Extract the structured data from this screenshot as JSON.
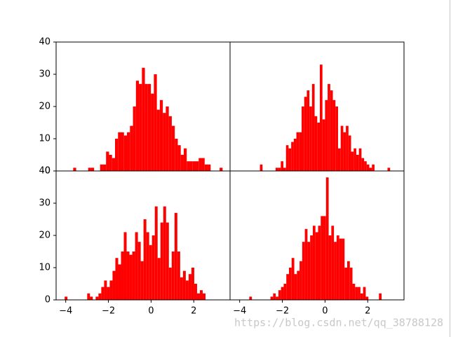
{
  "chart_data": [
    {
      "type": "histogram",
      "color": "#ff0000",
      "bins": [
        -3.65,
        -3.51,
        -3.37,
        -3.23,
        -3.09,
        -2.95,
        -2.81,
        -2.67,
        -2.53,
        -2.39,
        -2.25,
        -2.11,
        -1.97,
        -1.83,
        -1.69,
        -1.55,
        -1.41,
        -1.27,
        -1.13,
        -0.99,
        -0.85,
        -0.71,
        -0.57,
        -0.43,
        -0.29,
        -0.15,
        -0.01,
        0.13,
        0.27,
        0.41,
        0.55,
        0.69,
        0.83,
        0.97,
        1.11,
        1.25,
        1.39,
        1.53,
        1.67,
        1.81,
        1.95,
        2.09,
        2.23,
        2.37,
        2.51,
        2.65,
        2.79,
        2.93,
        3.07,
        3.21,
        3.35
      ],
      "values": [
        1,
        0,
        0,
        0,
        0,
        1,
        1,
        0,
        0,
        2,
        2,
        6,
        5,
        4,
        10,
        12,
        12,
        11,
        12,
        14,
        20,
        28,
        27,
        32,
        27,
        27,
        24,
        30,
        19,
        22,
        18,
        20,
        17,
        14,
        10,
        8,
        5,
        7,
        3,
        3,
        3,
        3,
        4,
        4,
        2,
        2,
        0,
        0,
        0,
        1
      ],
      "xlim": [
        -4.45,
        3.7
      ],
      "ylim": [
        0,
        40
      ],
      "yticks": [
        0,
        10,
        20,
        30,
        40
      ]
    },
    {
      "type": "histogram",
      "color": "#ff0000",
      "bins": [
        -3.05,
        -2.928,
        -2.806,
        -2.684,
        -2.562,
        -2.44,
        -2.318,
        -2.196,
        -2.074,
        -1.952,
        -1.83,
        -1.708,
        -1.586,
        -1.464,
        -1.342,
        -1.22,
        -1.098,
        -0.976,
        -0.854,
        -0.732,
        -0.61,
        -0.488,
        -0.366,
        -0.244,
        -0.122,
        0,
        0.122,
        0.244,
        0.366,
        0.488,
        0.61,
        0.732,
        0.854,
        0.976,
        1.098,
        1.22,
        1.342,
        1.464,
        1.586,
        1.708,
        1.83,
        1.952,
        2.074,
        2.196,
        2.318,
        2.44,
        2.562,
        2.684,
        2.806,
        2.928,
        3.05
      ],
      "values": [
        2,
        0,
        0,
        0,
        0,
        0,
        1,
        1,
        3,
        1,
        8,
        7,
        9,
        10,
        12,
        12,
        20,
        23,
        25,
        20,
        27,
        17,
        15,
        33,
        16,
        22,
        27,
        25,
        22,
        20,
        7,
        14,
        12,
        14,
        11,
        6,
        7,
        5,
        7,
        4,
        3,
        2,
        1,
        2,
        0,
        0,
        0,
        0,
        0,
        1
      ],
      "xlim": [
        -4.45,
        3.7
      ],
      "ylim": [
        0,
        40
      ]
    },
    {
      "type": "histogram",
      "color": "#ff0000",
      "bins": [
        -4.05,
        -3.918,
        -3.786,
        -3.654,
        -3.522,
        -3.39,
        -3.258,
        -3.126,
        -2.994,
        -2.862,
        -2.73,
        -2.598,
        -2.466,
        -2.334,
        -2.202,
        -2.07,
        -1.938,
        -1.806,
        -1.674,
        -1.542,
        -1.41,
        -1.278,
        -1.146,
        -1.014,
        -0.882,
        -0.75,
        -0.618,
        -0.486,
        -0.354,
        -0.222,
        -0.09,
        0.042,
        0.174,
        0.306,
        0.438,
        0.57,
        0.702,
        0.834,
        0.966,
        1.098,
        1.23,
        1.362,
        1.494,
        1.626,
        1.758,
        1.89,
        2.022,
        2.154,
        2.286,
        2.418,
        2.55
      ],
      "values": [
        1,
        0,
        0,
        0,
        0,
        0,
        0,
        0,
        2,
        1,
        0,
        1,
        2,
        4,
        6,
        4,
        6,
        9,
        13,
        11,
        15,
        21,
        15,
        14,
        15,
        21,
        18,
        12,
        25,
        21,
        17,
        20,
        29,
        13,
        24,
        29,
        24,
        10,
        15,
        27,
        15,
        7,
        9,
        6,
        8,
        10,
        5,
        2,
        3,
        2
      ],
      "xlim": [
        -4.45,
        3.7
      ],
      "ylim": [
        0,
        40
      ],
      "yticks": [
        0,
        10,
        20,
        30,
        40
      ],
      "xticks": [
        {
          "value": -4,
          "label": "−4"
        },
        {
          "value": -2,
          "label": "−2"
        },
        0,
        2
      ]
    },
    {
      "type": "histogram",
      "color": "#ff0000",
      "bins": [
        -3.55,
        -3.426,
        -3.302,
        -3.178,
        -3.054,
        -2.93,
        -2.806,
        -2.682,
        -2.558,
        -2.434,
        -2.31,
        -2.186,
        -2.062,
        -1.938,
        -1.814,
        -1.69,
        -1.566,
        -1.442,
        -1.318,
        -1.194,
        -1.07,
        -0.946,
        -0.822,
        -0.698,
        -0.574,
        -0.45,
        -0.326,
        -0.202,
        -0.078,
        0.046,
        0.17,
        0.294,
        0.418,
        0.542,
        0.666,
        0.79,
        0.914,
        1.038,
        1.162,
        1.286,
        1.41,
        1.534,
        1.658,
        1.782,
        1.906,
        2.03,
        2.154,
        2.278,
        2.402,
        2.526,
        2.65
      ],
      "values": [
        1,
        0,
        0,
        0,
        0,
        0,
        0,
        0,
        1,
        2,
        1,
        3,
        4,
        5,
        8,
        10,
        13,
        8,
        9,
        12,
        18,
        22,
        18,
        20,
        23,
        21,
        23,
        26,
        26,
        38,
        20,
        23,
        18,
        20,
        19,
        19,
        10,
        12,
        10,
        5,
        4,
        4,
        2,
        4,
        1,
        0,
        0,
        0,
        0,
        2
      ],
      "xlim": [
        -4.45,
        3.7
      ],
      "ylim": [
        0,
        40
      ],
      "xticks": [
        {
          "value": -4,
          "label": "−4"
        },
        {
          "value": -2,
          "label": "−2"
        },
        0,
        2
      ]
    }
  ],
  "watermark": "https://blog.csdn.net/qq_38788128"
}
